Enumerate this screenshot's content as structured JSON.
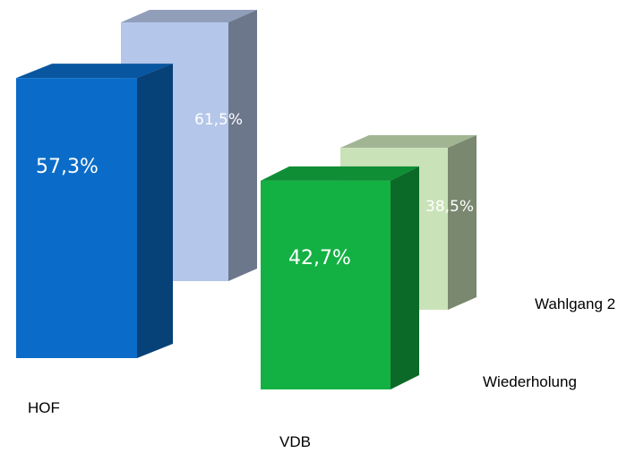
{
  "chart_data": {
    "type": "bar",
    "style": "3d-clustered",
    "categories": [
      "HOF",
      "VDB"
    ],
    "series": [
      {
        "name": "Wiederholung",
        "values": [
          57.3,
          42.7
        ],
        "value_labels": [
          "57,3%",
          "42,7%"
        ],
        "colors": [
          "#0a6cc8",
          "#13b143"
        ]
      },
      {
        "name": "Wahlgang 2",
        "values": [
          61.5,
          38.5
        ],
        "value_labels": [
          "61,5%",
          "38,5%"
        ],
        "colors": [
          "#b4c6e9",
          "#c9e2b8"
        ]
      }
    ],
    "title": "",
    "xlabel": "",
    "ylabel": "",
    "grid": false,
    "legend": "none"
  }
}
